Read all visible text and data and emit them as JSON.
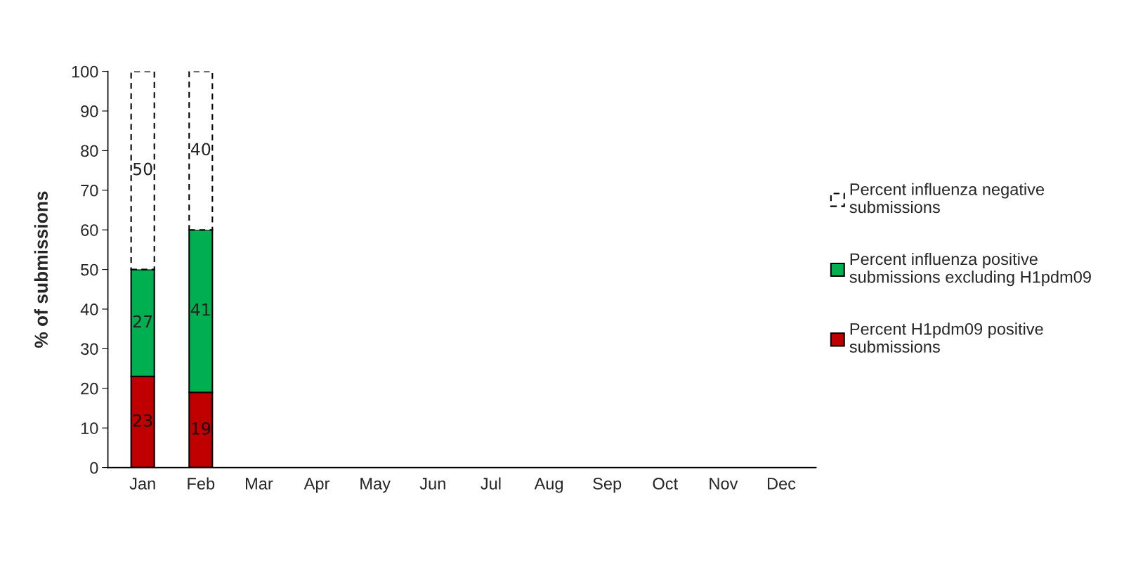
{
  "chart_data": {
    "type": "bar",
    "stacked": true,
    "ylabel": "% of submissions",
    "categories": [
      "Jan",
      "Feb",
      "Mar",
      "Apr",
      "May",
      "Jun",
      "Jul",
      "Aug",
      "Sep",
      "Oct",
      "Nov",
      "Dec"
    ],
    "series": [
      {
        "name": "Percent H1pdm09 positive\nsubmissions",
        "color": "#c00000",
        "values": [
          23,
          19,
          null,
          null,
          null,
          null,
          null,
          null,
          null,
          null,
          null,
          null
        ]
      },
      {
        "name": "Percent influenza positive\nsubmissions excluding H1pdm09",
        "color": "#00b050",
        "values": [
          27,
          41,
          null,
          null,
          null,
          null,
          null,
          null,
          null,
          null,
          null,
          null
        ]
      },
      {
        "name": "Percent influenza negative\nsubmissions",
        "color": "#ffffff",
        "line_style": "dashed",
        "values": [
          50,
          40,
          null,
          null,
          null,
          null,
          null,
          null,
          null,
          null,
          null,
          null
        ]
      }
    ],
    "ylim": [
      0,
      100
    ],
    "yticks": [
      0,
      10,
      20,
      30,
      40,
      50,
      60,
      70,
      80,
      90,
      100
    ],
    "data_labels": true,
    "grid": false,
    "legend": "right"
  }
}
